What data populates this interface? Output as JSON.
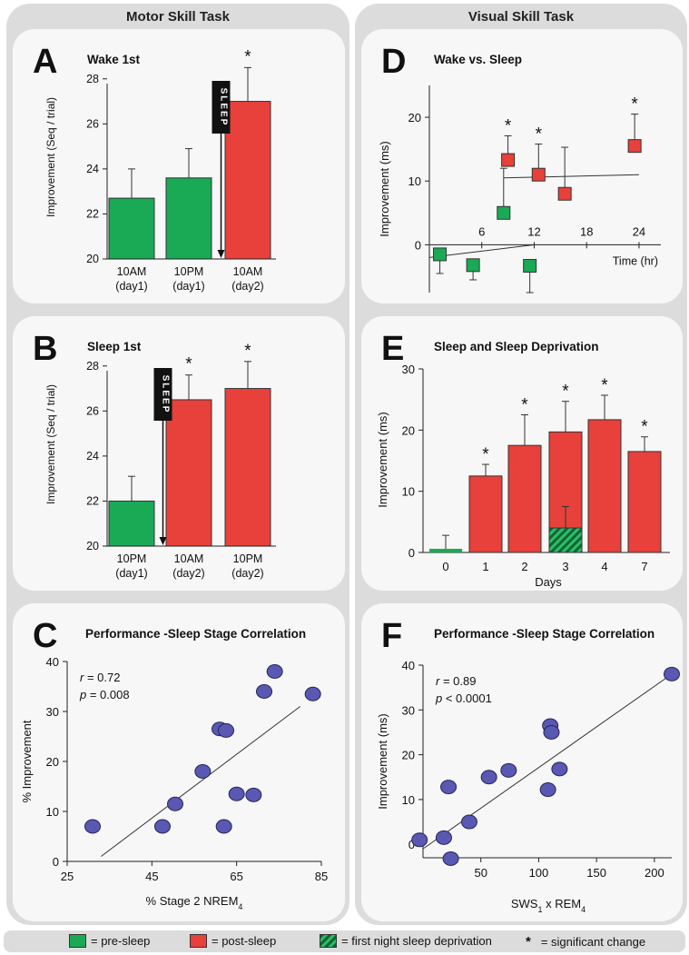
{
  "headers": {
    "left": "Motor Skill Task",
    "right": "Visual Skill Task"
  },
  "colors": {
    "pre": "#1aaa55",
    "post": "#e8403a",
    "dot": "#5959b3",
    "dot_edge": "#23235a",
    "hatch": "#116633"
  },
  "sleep_label": "SLEEP",
  "chart_data": [
    {
      "id": "A",
      "type": "bar",
      "panel_letter": "A",
      "title": "Wake 1st",
      "ylabel": "Improvement (Seq / trial)",
      "ylim": [
        20,
        29
      ],
      "yticks": [
        "20",
        "22",
        "24",
        "26",
        "28"
      ],
      "categories": [
        [
          "10AM",
          "(day1)"
        ],
        [
          "10PM",
          "(day1)"
        ],
        [
          "10AM",
          "(day2)"
        ]
      ],
      "values": [
        22.7,
        23.6,
        27.0
      ],
      "errors": [
        1.3,
        1.3,
        1.5
      ],
      "phase": [
        "pre",
        "pre",
        "post"
      ],
      "significant": [
        false,
        false,
        true
      ],
      "sleep_between": [
        1,
        2
      ]
    },
    {
      "id": "B",
      "type": "bar",
      "panel_letter": "B",
      "title": "Sleep 1st",
      "ylabel": "Improvement (Seq / trial)",
      "ylim": [
        20,
        29
      ],
      "yticks": [
        "20",
        "22",
        "24",
        "26",
        "28"
      ],
      "categories": [
        [
          "10PM",
          "(day1)"
        ],
        [
          "10AM",
          "(day2)"
        ],
        [
          "10PM",
          "(day2)"
        ]
      ],
      "values": [
        22.0,
        26.5,
        27.0
      ],
      "errors": [
        1.1,
        1.1,
        1.2
      ],
      "phase": [
        "pre",
        "post",
        "post"
      ],
      "significant": [
        false,
        true,
        true
      ],
      "sleep_between": [
        0,
        1
      ]
    },
    {
      "id": "C",
      "type": "scatter",
      "panel_letter": "C",
      "title": "Performance -Sleep Stage Correlation",
      "xlabel": "% Stage 2 NREM",
      "xlabel_sub": "4",
      "ylabel": "% Improvement",
      "xlim": [
        25,
        85
      ],
      "ylim": [
        0,
        40
      ],
      "xticks": [
        "25",
        "45",
        "65",
        "85"
      ],
      "yticks": [
        "0",
        "10",
        "20",
        "30",
        "40"
      ],
      "stat_r": "= 0.72",
      "stat_p": "= 0.008",
      "points": [
        [
          31,
          7
        ],
        [
          47.5,
          7
        ],
        [
          50.5,
          11.5
        ],
        [
          57,
          18
        ],
        [
          61,
          26.5
        ],
        [
          62.5,
          26.2
        ],
        [
          62,
          7
        ],
        [
          65,
          13.5
        ],
        [
          69,
          13.3
        ],
        [
          71.5,
          34
        ],
        [
          74,
          38
        ],
        [
          83,
          33.5
        ]
      ],
      "fit": [
        [
          33,
          1
        ],
        [
          80,
          31
        ]
      ]
    },
    {
      "id": "D",
      "type": "scatter",
      "panel_letter": "D",
      "title": "Wake vs. Sleep",
      "xlabel": "Time (hr)",
      "ylabel": "Improvement (ms)",
      "xlim": [
        0,
        26.5
      ],
      "ylim": [
        -7.5,
        25
      ],
      "xticks": [
        "6",
        "12",
        "18",
        "24"
      ],
      "yticks": [
        "0",
        "10",
        "20"
      ],
      "points": [
        {
          "x": 1.2,
          "y": -1.5,
          "err": 3.0,
          "phase": "pre",
          "sig": false
        },
        {
          "x": 5,
          "y": -3.2,
          "err": 2.3,
          "phase": "pre",
          "sig": false
        },
        {
          "x": 8.5,
          "y": 5,
          "err": 7.0,
          "phase": "pre",
          "sig": false
        },
        {
          "x": 11.5,
          "y": -3.3,
          "err": 4.2,
          "phase": "pre",
          "sig": false
        },
        {
          "x": 9,
          "y": 13.3,
          "err": 3.8,
          "phase": "post",
          "sig": true
        },
        {
          "x": 12.5,
          "y": 11,
          "err": 4.8,
          "phase": "post",
          "sig": true
        },
        {
          "x": 15.5,
          "y": 8,
          "err": 7.3,
          "phase": "post",
          "sig": false
        },
        {
          "x": 23.5,
          "y": 15.5,
          "err": 5.0,
          "phase": "post",
          "sig": true
        }
      ],
      "fit_pre": [
        [
          0,
          -2
        ],
        [
          12,
          0
        ]
      ],
      "fit_post": [
        [
          8.5,
          10.5
        ],
        [
          24,
          11
        ]
      ]
    },
    {
      "id": "E",
      "type": "bar",
      "panel_letter": "E",
      "title": "Sleep and Sleep Deprivation",
      "xlabel": "Days",
      "ylabel": "Improvement (ms)",
      "ylim": [
        0,
        30
      ],
      "yticks": [
        "0",
        "10",
        "20",
        "30"
      ],
      "categories": [
        "0",
        "1",
        "2",
        "3",
        "3",
        "4",
        "7"
      ],
      "values": [
        0.6,
        12.5,
        17.5,
        19.7,
        4.0,
        21.7,
        16.5
      ],
      "errors": [
        2.2,
        1.9,
        5.0,
        5.0,
        3.5,
        4.0,
        2.4
      ],
      "phase": [
        "pre",
        "post",
        "post",
        "post",
        "deprivation",
        "post",
        "post"
      ],
      "significant": [
        false,
        true,
        true,
        true,
        false,
        true,
        true
      ],
      "category_ticks": [
        "0",
        "1",
        "2",
        "3",
        "4",
        "7"
      ]
    },
    {
      "id": "F",
      "type": "scatter",
      "panel_letter": "F",
      "title": "Performance -Sleep Stage Correlation",
      "xlabel": "SWS",
      "xlabel_sub1": "1",
      "xlabel_mid": " x REM",
      "xlabel_sub2": "4",
      "ylabel": "Improvement (ms)",
      "xlim": [
        0,
        215
      ],
      "ylim": [
        -3,
        40
      ],
      "xticks": [
        "50",
        "100",
        "150",
        "200"
      ],
      "yticks": [
        "0",
        "10",
        "20",
        "30",
        "40"
      ],
      "stat_r": "= 0.89",
      "stat_p": "< 0.0001",
      "points": [
        [
          -3,
          1
        ],
        [
          18,
          1.5
        ],
        [
          22,
          12.8
        ],
        [
          24,
          -3.2
        ],
        [
          40,
          5
        ],
        [
          57,
          15
        ],
        [
          74,
          16.5
        ],
        [
          108,
          12.2
        ],
        [
          110,
          26.5
        ],
        [
          111,
          25
        ],
        [
          118,
          16.8
        ],
        [
          215,
          38
        ]
      ],
      "fit": [
        [
          0,
          -1
        ],
        [
          215,
          38
        ]
      ]
    }
  ],
  "legend": {
    "pre": "= pre-sleep",
    "post": "= post-sleep",
    "deprivation": "= first night sleep deprivation",
    "star": "*",
    "significant": "= significant change"
  }
}
